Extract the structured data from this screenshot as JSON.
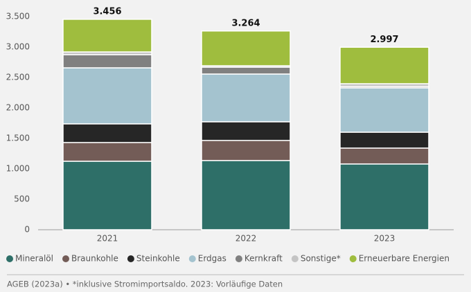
{
  "chart_data": {
    "type": "stacked-bar",
    "categories": [
      "2021",
      "2022",
      "2023"
    ],
    "series": [
      {
        "name": "Mineralöl",
        "color": "#2e6f68",
        "values": [
          1125,
          1136,
          1080
        ]
      },
      {
        "name": "Braunkohle",
        "color": "#735c57",
        "values": [
          307,
          330,
          261
        ]
      },
      {
        "name": "Steinkohle",
        "color": "#262626",
        "values": [
          307,
          307,
          261
        ]
      },
      {
        "name": "Erdgas",
        "color": "#a4c3cf",
        "values": [
          920,
          784,
          728
        ]
      },
      {
        "name": "Kernkraft",
        "color": "#808080",
        "values": [
          216,
          113,
          22
        ]
      },
      {
        "name": "Sonstige*",
        "color": "#c4c4c4",
        "values": [
          45,
          23,
          46
        ]
      },
      {
        "name": "Erneuerbare Energien",
        "color": "#9fbd3e",
        "values": [
          536,
          571,
          599
        ]
      }
    ],
    "totals": {
      "values": [
        3456,
        3264,
        2997
      ],
      "value_labels": [
        "3.456",
        "3.264",
        "2.997"
      ]
    },
    "ylim": [
      0,
      3500
    ],
    "yticks": [
      0,
      500,
      {
        "value": 1000,
        "label": "1.000"
      },
      {
        "value": 1500,
        "label": "1.500"
      },
      {
        "value": 2000,
        "label": "2.000"
      },
      {
        "value": 2500,
        "label": "2.500"
      },
      {
        "value": 3000,
        "label": "3.000"
      },
      {
        "value": 3500,
        "label": "3.500"
      }
    ],
    "grid": false,
    "source": "AGEB (2023a) • *inklusive Stromimportsaldo. 2023: Vorläufige Daten"
  }
}
